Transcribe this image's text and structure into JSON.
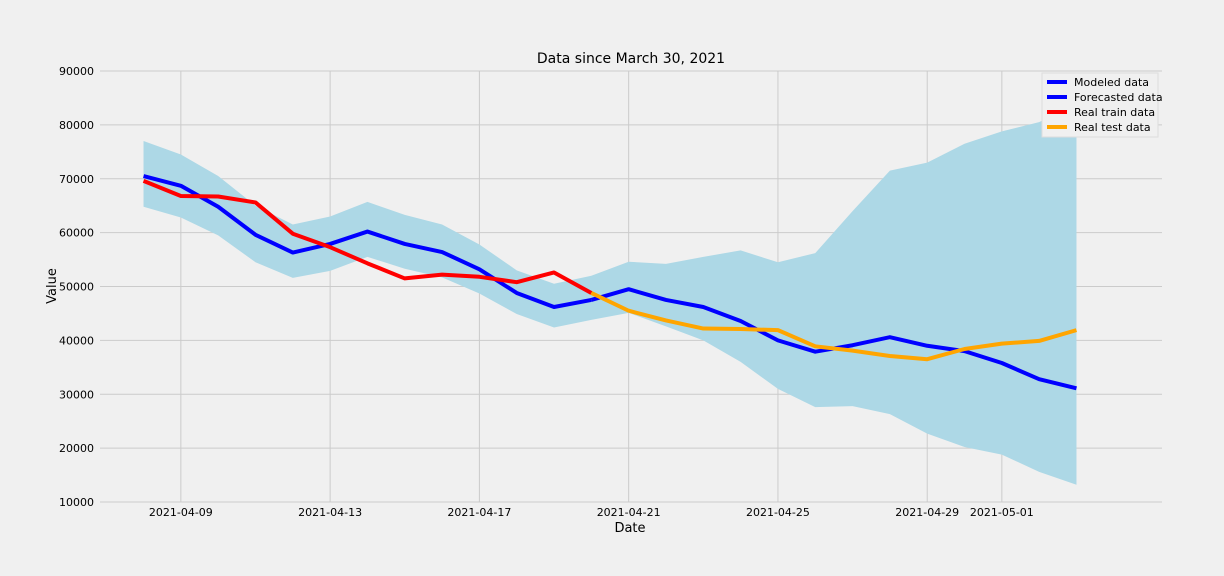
{
  "chart_data": {
    "type": "line",
    "title": "Data since March 30, 2021",
    "xlabel": "Date",
    "ylabel": "Value",
    "ylim": [
      10000,
      90000
    ],
    "yticks": [
      10000,
      20000,
      30000,
      40000,
      50000,
      60000,
      70000,
      80000,
      90000
    ],
    "xlim": [
      "2021-04-06T20:00",
      "2021-05-05T07:00"
    ],
    "xticks": [
      "2021-04-09",
      "2021-04-13",
      "2021-04-17",
      "2021-04-21",
      "2021-04-25",
      "2021-04-29",
      "2021-05-01"
    ],
    "grid": true,
    "legend_position": "top-right",
    "confidence_band": {
      "color": "#add8e6",
      "x": [
        "2021-04-08",
        "2021-04-09",
        "2021-04-10",
        "2021-04-11",
        "2021-04-12",
        "2021-04-13",
        "2021-04-14",
        "2021-04-15",
        "2021-04-16",
        "2021-04-17",
        "2021-04-18",
        "2021-04-19",
        "2021-04-20",
        "2021-04-21",
        "2021-04-22",
        "2021-04-23",
        "2021-04-24",
        "2021-04-25",
        "2021-04-26",
        "2021-04-27",
        "2021-04-28",
        "2021-04-29",
        "2021-04-30",
        "2021-05-01",
        "2021-05-02",
        "2021-05-03"
      ],
      "upper": [
        77000,
        74500,
        70500,
        65000,
        61500,
        63000,
        65700,
        63300,
        61500,
        57800,
        53000,
        50500,
        52000,
        54600,
        54200,
        55500,
        56700,
        54500,
        56200,
        64000,
        71500,
        73000,
        76500,
        78800,
        80500,
        84000
      ],
      "lower": [
        64800,
        62800,
        59500,
        54500,
        51600,
        52900,
        55500,
        53300,
        51700,
        48700,
        44900,
        42400,
        43800,
        45100,
        42600,
        40000,
        36000,
        31000,
        27600,
        27800,
        26300,
        22700,
        20200,
        18800,
        15600,
        13200
      ]
    },
    "series": [
      {
        "name": "Modeled data",
        "color": "#0000ff",
        "x": [
          "2021-04-08",
          "2021-04-09",
          "2021-04-10",
          "2021-04-11",
          "2021-04-12",
          "2021-04-13",
          "2021-04-14",
          "2021-04-15",
          "2021-04-16",
          "2021-04-17",
          "2021-04-18",
          "2021-04-19",
          "2021-04-20"
        ],
        "values": [
          70500,
          68700,
          64800,
          59600,
          56300,
          57900,
          60200,
          57900,
          56400,
          53200,
          48800,
          46200,
          47500
        ]
      },
      {
        "name": "Forecasted data",
        "color": "#0000ff",
        "x": [
          "2021-04-20",
          "2021-04-21",
          "2021-04-22",
          "2021-04-23",
          "2021-04-24",
          "2021-04-25",
          "2021-04-26",
          "2021-04-27",
          "2021-04-28",
          "2021-04-29",
          "2021-04-30",
          "2021-05-01",
          "2021-05-02",
          "2021-05-03"
        ],
        "values": [
          47500,
          49500,
          47500,
          46200,
          43600,
          40000,
          37900,
          39100,
          40600,
          39000,
          38000,
          35800,
          32800,
          31100
        ]
      },
      {
        "name": "Real train data",
        "color": "#ff0000",
        "x": [
          "2021-04-08",
          "2021-04-09",
          "2021-04-10",
          "2021-04-11",
          "2021-04-12",
          "2021-04-13",
          "2021-04-14",
          "2021-04-15",
          "2021-04-16",
          "2021-04-17",
          "2021-04-18",
          "2021-04-19",
          "2021-04-20"
        ],
        "values": [
          69600,
          66800,
          66700,
          65600,
          59800,
          57300,
          54300,
          51500,
          52200,
          51800,
          50800,
          52600,
          48800
        ]
      },
      {
        "name": "Real test data",
        "color": "#ffa500",
        "x": [
          "2021-04-20",
          "2021-04-21",
          "2021-04-22",
          "2021-04-23",
          "2021-04-24",
          "2021-04-25",
          "2021-04-26",
          "2021-04-27",
          "2021-04-28",
          "2021-04-29",
          "2021-04-30",
          "2021-05-01",
          "2021-05-02",
          "2021-05-03"
        ],
        "values": [
          48800,
          45500,
          43700,
          42200,
          42100,
          41900,
          38900,
          38100,
          37100,
          36500,
          38400,
          39400,
          39900,
          41900
        ]
      }
    ]
  }
}
